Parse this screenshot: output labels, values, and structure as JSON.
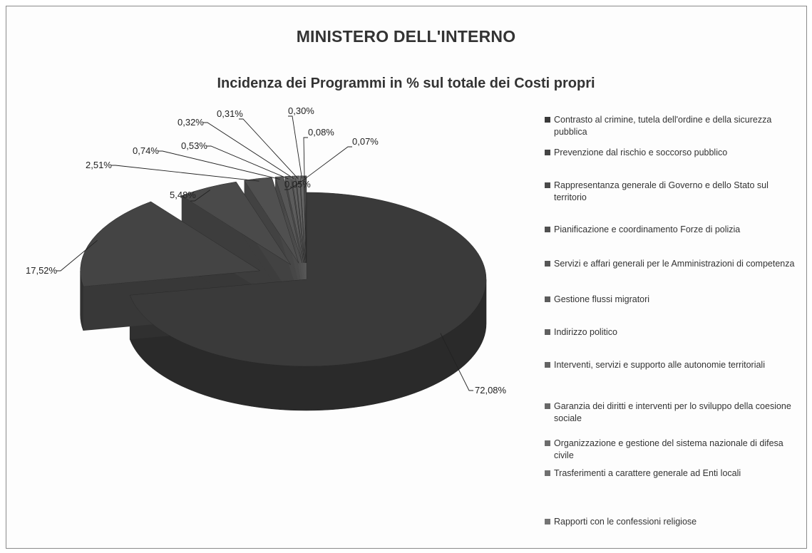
{
  "chart_data": {
    "type": "pie",
    "title": "MINISTERO DELL'INTERNO",
    "subtitle": "Incidenza dei Programmi in % sul totale dei Costi propri",
    "legend_position": "right",
    "slices": [
      {
        "name": "Contrasto al crimine, tutela dell'ordine e della sicurezza pubblica",
        "value": 72.08,
        "label": "72,08%",
        "color": "#3a3a3a"
      },
      {
        "name": "Prevenzione dal rischio e soccorso pubblico",
        "value": 17.52,
        "label": "17,52%",
        "color": "#444444"
      },
      {
        "name": "Rappresentanza generale di Governo e dello Stato sul territorio",
        "value": 5.48,
        "label": "5,48%",
        "color": "#4a4a4a"
      },
      {
        "name": "Pianificazione e coordinamento Forze di polizia",
        "value": 2.51,
        "label": "2,51%",
        "color": "#505050"
      },
      {
        "name": "Servizi e affari generali per le Amministrazioni di competenza",
        "value": 0.74,
        "label": "0,74%",
        "color": "#565656"
      },
      {
        "name": "Gestione flussi migratori",
        "value": 0.53,
        "label": "0,53%",
        "color": "#5c5c5c"
      },
      {
        "name": "Indirizzo politico",
        "value": 0.32,
        "label": "0,32%",
        "color": "#606060"
      },
      {
        "name": "Interventi, servizi e supporto alle autonomie territoriali",
        "value": 0.31,
        "label": "0,31%",
        "color": "#646464"
      },
      {
        "name": "Garanzia dei diritti e interventi per lo sviluppo della coesione sociale",
        "value": 0.3,
        "label": "0,30%",
        "color": "#686868"
      },
      {
        "name": "Organizzazione e gestione del sistema nazionale di difesa civile",
        "value": 0.08,
        "label": "0,08%",
        "color": "#6c6c6c"
      },
      {
        "name": "Trasferimenti a carattere generale ad Enti locali",
        "value": 0.07,
        "label": "0,07%",
        "color": "#707070"
      },
      {
        "name": "Rapporti con le confessioni religiose",
        "value": 0.05,
        "label": "0,05%",
        "color": "#747474"
      }
    ]
  }
}
